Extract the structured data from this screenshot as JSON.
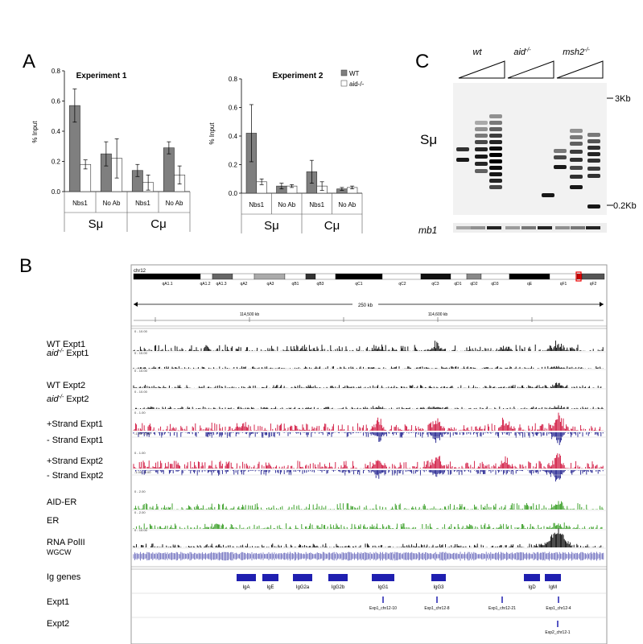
{
  "panels": {
    "a": "A",
    "b": "B",
    "c": "C"
  },
  "panel_a": {
    "ylabel": "% Input",
    "legend": {
      "wt": "WT",
      "aid": "aid-/-"
    },
    "group_labels": [
      "Sμ",
      "Cμ"
    ]
  },
  "chart_data": [
    {
      "type": "bar",
      "title": "Experiment 1",
      "categories": [
        "Nbs1",
        "No Ab",
        "Nbs1",
        "No Ab"
      ],
      "groups": [
        "Sμ",
        "Sμ",
        "Cμ",
        "Cμ"
      ],
      "ylabel": "% Input",
      "ylim": [
        0,
        0.8
      ],
      "yticks": [
        "0.0",
        "0.2",
        "0.4",
        "0.6",
        "0.8"
      ],
      "series": [
        {
          "name": "WT",
          "color": "#7f7f7f",
          "values": [
            0.57,
            0.25,
            0.14,
            0.29
          ],
          "errors": [
            0.11,
            0.08,
            0.04,
            0.04
          ]
        },
        {
          "name": "aid-/-",
          "color": "#ffffff",
          "values": [
            0.18,
            0.22,
            0.06,
            0.11
          ],
          "errors": [
            0.03,
            0.13,
            0.05,
            0.06
          ]
        }
      ]
    },
    {
      "type": "bar",
      "title": "Experiment 2",
      "categories": [
        "Nbs1",
        "No Ab",
        "Nbs1",
        "No Ab"
      ],
      "groups": [
        "Sμ",
        "Sμ",
        "Cμ",
        "Cμ"
      ],
      "ylabel": "% Input",
      "ylim": [
        0,
        0.8
      ],
      "yticks": [
        "0.0",
        "0.2",
        "0.4",
        "0.6",
        "0.8"
      ],
      "series": [
        {
          "name": "WT",
          "color": "#7f7f7f",
          "values": [
            0.42,
            0.05,
            0.15,
            0.03
          ],
          "errors": [
            0.2,
            0.02,
            0.08,
            0.01
          ]
        },
        {
          "name": "aid-/-",
          "color": "#ffffff",
          "values": [
            0.08,
            0.05,
            0.05,
            0.04
          ],
          "errors": [
            0.02,
            0.01,
            0.03,
            0.01
          ]
        }
      ]
    }
  ],
  "panel_b": {
    "chromosome": "chr12",
    "bands": [
      "qA1.1",
      "qA1.2",
      "qA1.3",
      "qA2",
      "qA3",
      "qB1",
      "qB3",
      "qC1",
      "qC2",
      "qC3",
      "qD1",
      "qD2",
      "qD3",
      "qE",
      "qF1",
      "qF2"
    ],
    "scale": "250 kb",
    "coords": [
      "114,500 kb",
      "114,600 kb"
    ],
    "tracks": [
      {
        "label": "WT   Expt1",
        "range": "0 - 10.00"
      },
      {
        "label_pre": "aid",
        "label_sup": "-/-",
        "label_post": " Expt1",
        "range": "0 - 10.00"
      },
      {
        "label": "WT   Expt2",
        "range": "0 - 10.00"
      },
      {
        "label_pre": "aid",
        "label_sup": "-/-",
        "label_post": " Expt2",
        "range": "0 - 10.00"
      },
      {
        "label": "+Strand Expt1",
        "range": "0 - 1.00"
      },
      {
        "label": "- Strand Expt1",
        "range": "-1.00 - 0.00"
      },
      {
        "label": "+Strand Expt2",
        "range": "0 - 1.00"
      },
      {
        "label": "- Strand Expt2",
        "range": "-1.00 - 0.00"
      },
      {
        "label": "AID-ER",
        "range": "0 - 2.00"
      },
      {
        "label": "ER",
        "range": "0 - 2.00"
      },
      {
        "label": "RNA PolII",
        "range": "0 - 10.00"
      },
      {
        "label": "WGCW",
        "range": ""
      }
    ],
    "ig_label": "Ig genes",
    "ig_genes": [
      "IgA",
      "IgE",
      "IgG2a",
      "IgG2b",
      "IgG1",
      "IgG3",
      "IgD",
      "IgM"
    ],
    "expt1_label": "Expt1",
    "expt1_peaks": [
      "Exp1_chr12-10",
      "Exp1_chr12-8",
      "Exp1_chr12-21",
      "Exp1_chr12-4"
    ],
    "expt2_label": "Expt2",
    "expt2_peaks": [
      "Exp2_chr12-1"
    ]
  },
  "panel_c": {
    "lanes": [
      "wt",
      "aid-/-",
      "msh2-/-"
    ],
    "marker_top": "3Kb",
    "marker_bottom": "0.2Kb",
    "row_label": "Sμ",
    "loading_label": "mb1"
  }
}
